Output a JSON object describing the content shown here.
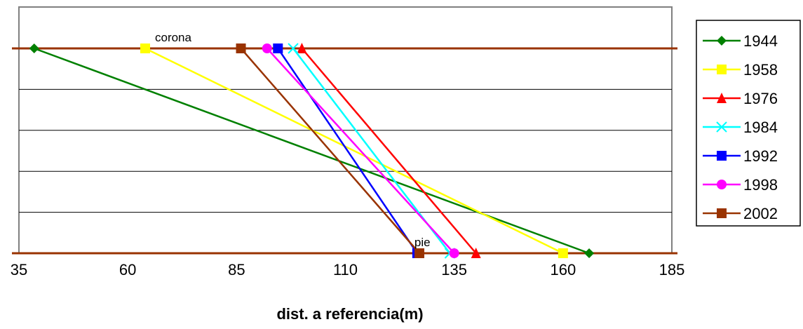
{
  "chart_data": {
    "type": "line",
    "title": "",
    "xlabel": "dist. a referencia(m)",
    "ylabel": "",
    "xlim": [
      35,
      185
    ],
    "xticks": [
      35,
      60,
      85,
      110,
      135,
      160,
      185
    ],
    "ylim": [
      0,
      1
    ],
    "grid": true,
    "legend_position": "right",
    "series": [
      {
        "name": "1944",
        "color": "#008000",
        "marker": "diamond",
        "points": [
          [
            38.5,
            1
          ],
          [
            166,
            0
          ]
        ]
      },
      {
        "name": "1958",
        "color": "#ffff00",
        "marker": "square",
        "points": [
          [
            64,
            1
          ],
          [
            160,
            0
          ]
        ]
      },
      {
        "name": "1976",
        "color": "#ff0000",
        "marker": "triangle",
        "points": [
          [
            100,
            1
          ],
          [
            140,
            0
          ]
        ]
      },
      {
        "name": "1984",
        "color": "#00ffff",
        "marker": "x",
        "points": [
          [
            98,
            1
          ],
          [
            134,
            0
          ]
        ]
      },
      {
        "name": "1992",
        "color": "#0000ff",
        "marker": "square",
        "points": [
          [
            94.5,
            1
          ],
          [
            126.5,
            0
          ]
        ]
      },
      {
        "name": "1998",
        "color": "#ff00ff",
        "marker": "circle",
        "points": [
          [
            92,
            1
          ],
          [
            135,
            0
          ]
        ]
      },
      {
        "name": "2002",
        "color": "#993300",
        "marker": "square",
        "points": [
          [
            86,
            1
          ],
          [
            127,
            0
          ]
        ]
      }
    ],
    "reference_lines": [
      {
        "y": 1,
        "color": "#993300"
      },
      {
        "y": 0,
        "color": "#993300"
      }
    ],
    "annotations": [
      {
        "text": "corona",
        "x": 64,
        "y": 1
      },
      {
        "text": "pie",
        "x": 126.5,
        "y": 0
      }
    ]
  }
}
